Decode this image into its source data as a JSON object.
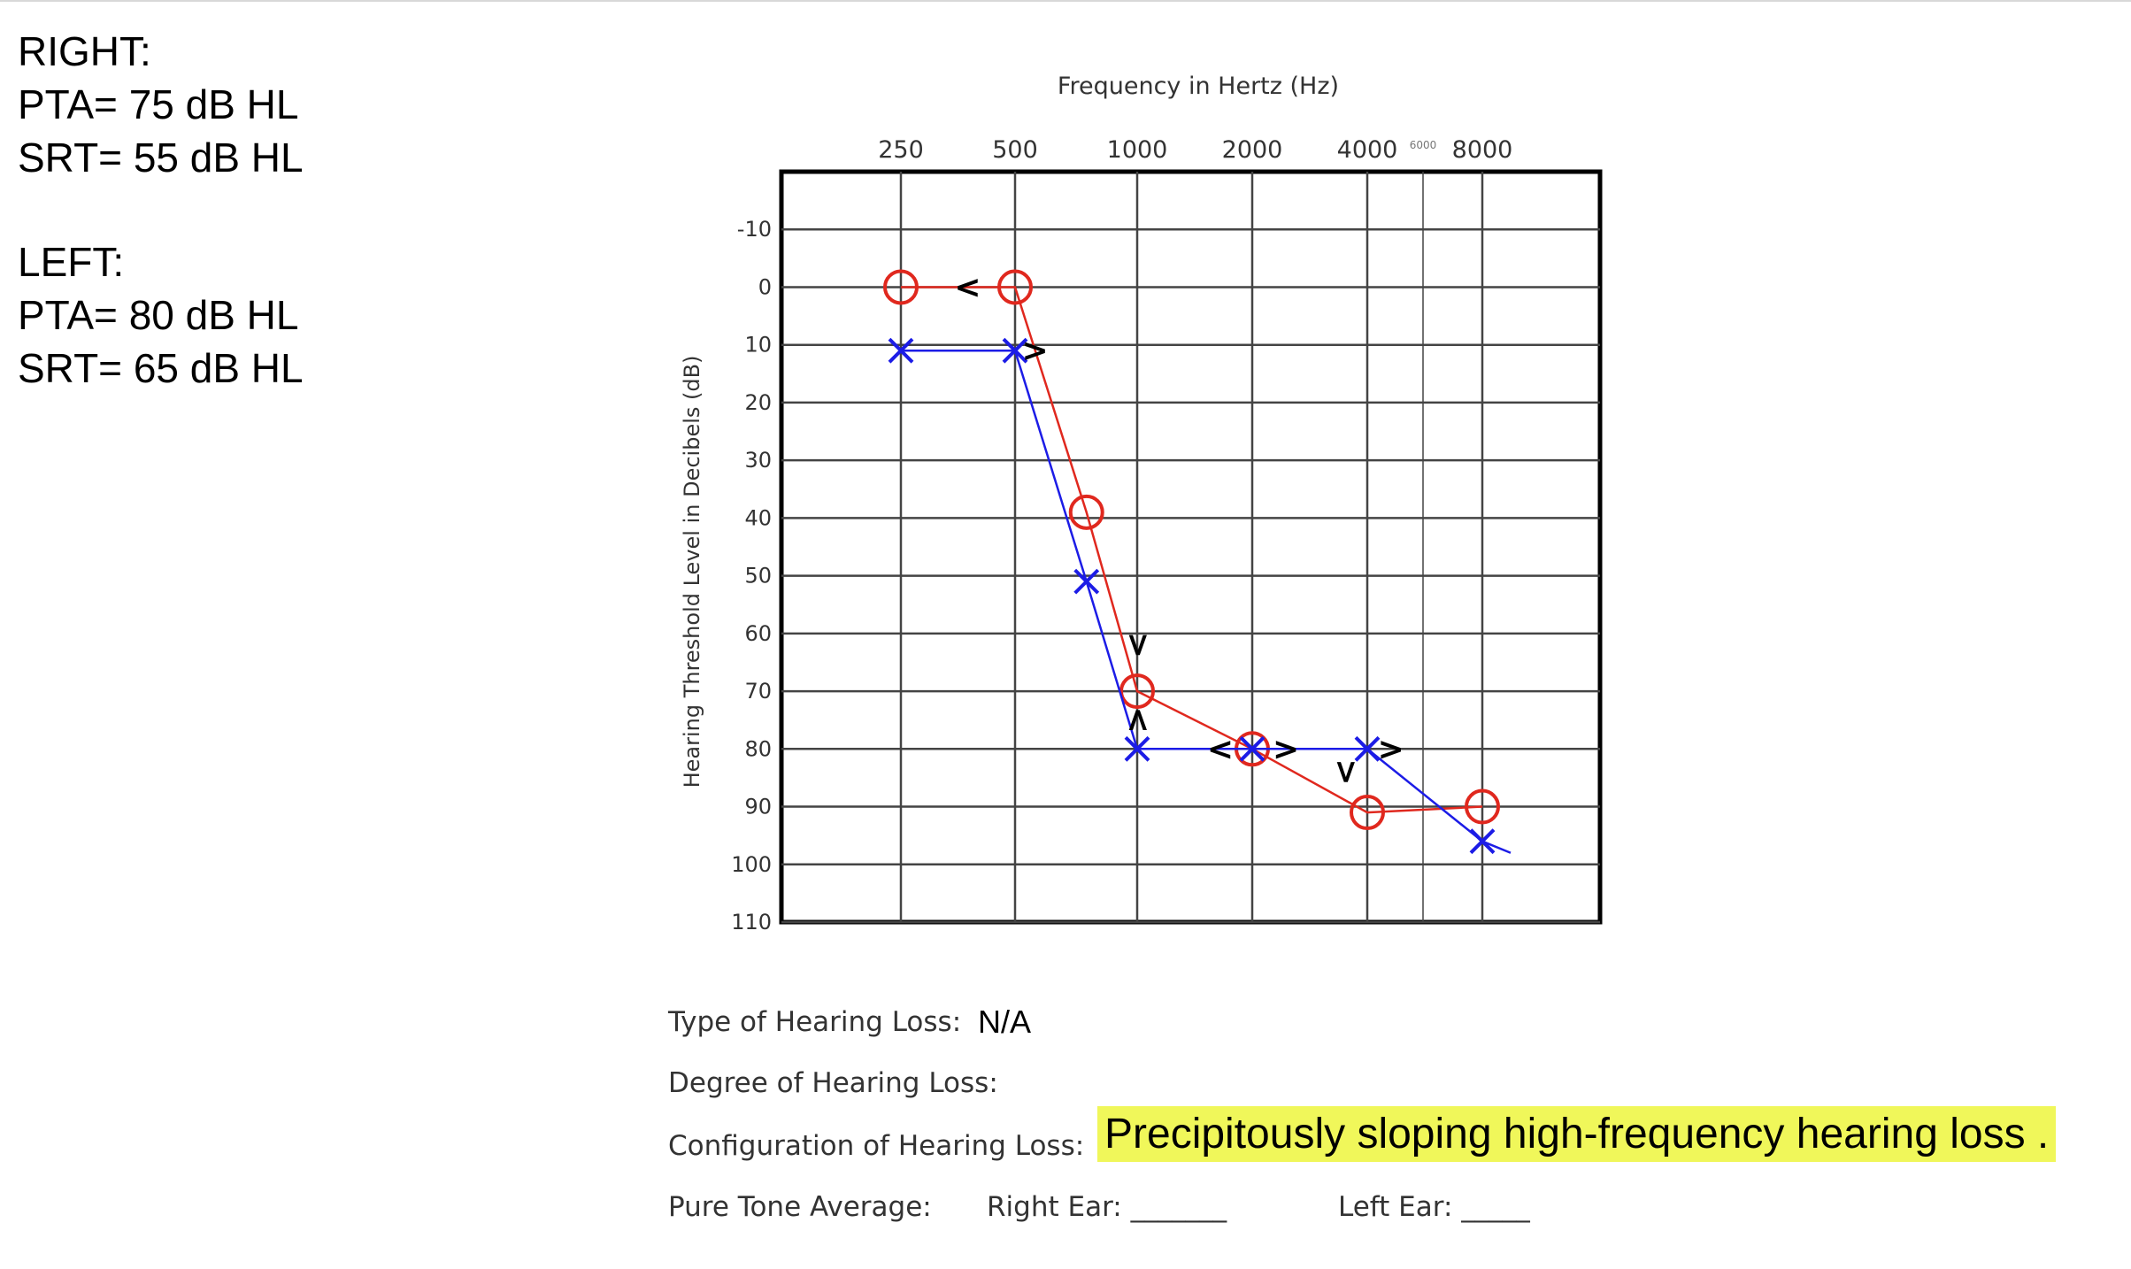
{
  "notes": {
    "right_title": "RIGHT:",
    "right_pta": "PTA= 75 dB HL",
    "right_srt": "SRT= 55 dB HL",
    "left_title": "LEFT:",
    "left_pta": "PTA= 80 dB HL",
    "left_srt": "SRT= 65 dB HL"
  },
  "chart_data": {
    "type": "line",
    "title": "Frequency in Hertz (Hz)",
    "xlabel": "Frequency in Hertz (Hz)",
    "ylabel": "Hearing Threshold Level in Decibels (dB)",
    "x_ticks": [
      "250",
      "500",
      "1000",
      "2000",
      "4000",
      "6000",
      "8000"
    ],
    "x_tick_values": [
      250,
      500,
      1000,
      2000,
      4000,
      6000,
      8000
    ],
    "y_ticks": [
      "-10",
      "0",
      "10",
      "20",
      "30",
      "40",
      "50",
      "60",
      "70",
      "80",
      "90",
      "100",
      "110"
    ],
    "ylim": [
      -10,
      110
    ],
    "series": [
      {
        "name": "Right ear (O)",
        "color": "#e0281e",
        "marker": "circle",
        "points": [
          [
            250,
            0
          ],
          [
            500,
            0
          ],
          [
            750,
            39
          ],
          [
            1000,
            70
          ],
          [
            2000,
            80
          ],
          [
            4000,
            91
          ],
          [
            8000,
            90
          ]
        ]
      },
      {
        "name": "Left ear (X)",
        "color": "#1c1ce6",
        "marker": "x",
        "points": [
          [
            250,
            11
          ],
          [
            500,
            11
          ],
          [
            750,
            51
          ],
          [
            1000,
            80
          ],
          [
            2000,
            80
          ],
          [
            4000,
            80
          ],
          [
            8000,
            96
          ]
        ]
      }
    ],
    "bone_marks": [
      {
        "symbol": "<",
        "freq": 375,
        "db": 0
      },
      {
        "symbol": ">",
        "freq": 560,
        "db": 11
      },
      {
        "symbol": "<",
        "freq": 1000,
        "db": 62,
        "rotated": true
      },
      {
        "symbol": ">",
        "freq": 1000,
        "db": 75,
        "rotated": true
      },
      {
        "symbol": "<",
        "freq": 1650,
        "db": 80
      },
      {
        "symbol": ">",
        "freq": 2450,
        "db": 80
      },
      {
        "symbol": "<",
        "freq": 3500,
        "db": 84,
        "rotated": true
      },
      {
        "symbol": ">",
        "freq": 4750,
        "db": 80
      }
    ],
    "extra_line": [
      [
        8000,
        96
      ],
      [
        8500,
        98
      ]
    ]
  },
  "form": {
    "type_label": "Type of Hearing Loss:",
    "type_value": "N/A",
    "degree_label": "Degree of Hearing Loss:",
    "config_label": "Configuration of Hearing Loss:",
    "config_value": "Precipitously sloping high-frequency hearing loss .",
    "pta_label": "Pure Tone Average:",
    "right_ear_label": "Right Ear: _______",
    "left_ear_label": "Left Ear: _____"
  }
}
